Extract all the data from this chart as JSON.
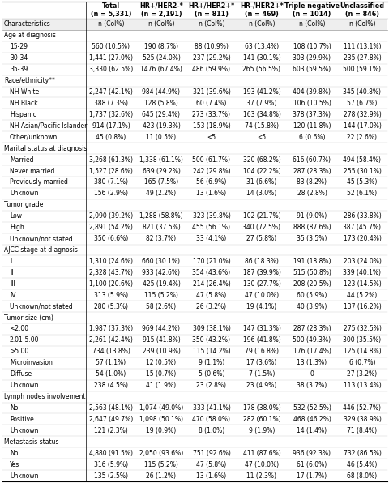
{
  "col_headers_line1": [
    "Total",
    "HR+/HER2-*",
    "HR+/HER2+*",
    "HR-/HER2+*",
    "Triple negative",
    "Unclassified"
  ],
  "col_headers_line2": [
    "(n = 5,331)",
    "(n = 2,191)",
    "(n = 811)",
    "(n = 469)",
    "(n = 1014)",
    "(n = 846)"
  ],
  "rows": [
    {
      "label": "Characteristics",
      "indent": 0,
      "section": false,
      "header": true,
      "values": [
        "n (Col%)",
        "n (Col%)",
        "n (Col%)",
        "n (Col%)",
        "n (Col%)",
        "n (Col%)"
      ]
    },
    {
      "label": "Age at diagnosis",
      "indent": 0,
      "section": true,
      "header": false,
      "values": []
    },
    {
      "label": "15-29",
      "indent": 1,
      "section": false,
      "header": false,
      "values": [
        "560 (10.5%)",
        "190 (8.7%)",
        "88 (10.9%)",
        "63 (13.4%)",
        "108 (10.7%)",
        "111 (13.1%)"
      ]
    },
    {
      "label": "30-34",
      "indent": 1,
      "section": false,
      "header": false,
      "values": [
        "1,441 (27.0%)",
        "525 (24.0%)",
        "237 (29.2%)",
        "141 (30.1%)",
        "303 (29.9%)",
        "235 (27.8%)"
      ]
    },
    {
      "label": "35-39",
      "indent": 1,
      "section": false,
      "header": false,
      "values": [
        "3,330 (62.5%)",
        "1476 (67.4%)",
        "486 (59.9%)",
        "265 (56.5%)",
        "603 (59.5%)",
        "500 (59.1%)"
      ]
    },
    {
      "label": "Race/ethnicity**",
      "indent": 0,
      "section": true,
      "header": false,
      "values": []
    },
    {
      "label": "NH White",
      "indent": 1,
      "section": false,
      "header": false,
      "values": [
        "2,247 (42.1%)",
        "984 (44.9%)",
        "321 (39.6%)",
        "193 (41.2%)",
        "404 (39.8%)",
        "345 (40.8%)"
      ]
    },
    {
      "label": "NH Black",
      "indent": 1,
      "section": false,
      "header": false,
      "values": [
        "388 (7.3%)",
        "128 (5.8%)",
        "60 (7.4%)",
        "37 (7.9%)",
        "106 (10.5%)",
        "57 (6.7%)"
      ]
    },
    {
      "label": "Hispanic",
      "indent": 1,
      "section": false,
      "header": false,
      "values": [
        "1,737 (32.6%)",
        "645 (29.4%)",
        "273 (33.7%)",
        "163 (34.8%)",
        "378 (37.3%)",
        "278 (32.9%)"
      ]
    },
    {
      "label": "NH Asian/Pacific Islander",
      "indent": 1,
      "section": false,
      "header": false,
      "values": [
        "914 (17.1%)",
        "423 (19.3%)",
        "153 (18.9%)",
        "74 (15.8%)",
        "120 (11.8%)",
        "144 (17.0%)"
      ]
    },
    {
      "label": "Other/unknown",
      "indent": 1,
      "section": false,
      "header": false,
      "values": [
        "45 (0.8%)",
        "11 (0.5%)",
        "<5",
        "<5",
        "6 (0.6%)",
        "22 (2.6%)"
      ]
    },
    {
      "label": "Marital status at diagnosis",
      "indent": 0,
      "section": true,
      "header": false,
      "values": []
    },
    {
      "label": "Married",
      "indent": 1,
      "section": false,
      "header": false,
      "values": [
        "3,268 (61.3%)",
        "1,338 (61.1%)",
        "500 (61.7%)",
        "320 (68.2%)",
        "616 (60.7%)",
        "494 (58.4%)"
      ]
    },
    {
      "label": "Never married",
      "indent": 1,
      "section": false,
      "header": false,
      "values": [
        "1,527 (28.6%)",
        "639 (29.2%)",
        "242 (29.8%)",
        "104 (22.2%)",
        "287 (28.3%)",
        "255 (30.1%)"
      ]
    },
    {
      "label": "Previously married",
      "indent": 1,
      "section": false,
      "header": false,
      "values": [
        "380 (7.1%)",
        "165 (7.5%)",
        "56 (6.9%)",
        "31 (6.6%)",
        "83 (8.2%)",
        "45 (5.3%)"
      ]
    },
    {
      "label": "Unknown",
      "indent": 1,
      "section": false,
      "header": false,
      "values": [
        "156 (2.9%)",
        "49 (2.2%)",
        "13 (1.6%)",
        "14 (3.0%)",
        "28 (2.8%)",
        "52 (6.1%)"
      ]
    },
    {
      "label": "Tumor grade†",
      "indent": 0,
      "section": true,
      "header": false,
      "values": []
    },
    {
      "label": "Low",
      "indent": 1,
      "section": false,
      "header": false,
      "values": [
        "2,090 (39.2%)",
        "1,288 (58.8%)",
        "323 (39.8%)",
        "102 (21.7%)",
        "91 (9.0%)",
        "286 (33.8%)"
      ]
    },
    {
      "label": "High",
      "indent": 1,
      "section": false,
      "header": false,
      "values": [
        "2,891 (54.2%)",
        "821 (37.5%)",
        "455 (56.1%)",
        "340 (72.5%)",
        "888 (87.6%)",
        "387 (45.7%)"
      ]
    },
    {
      "label": "Unknown/not stated",
      "indent": 1,
      "section": false,
      "header": false,
      "values": [
        "350 (6.6%)",
        "82 (3.7%)",
        "33 (4.1%)",
        "27 (5.8%)",
        "35 (3.5%)",
        "173 (20.4%)"
      ]
    },
    {
      "label": "AJCC stage at diagnosis",
      "indent": 0,
      "section": true,
      "header": false,
      "values": []
    },
    {
      "label": "I",
      "indent": 1,
      "section": false,
      "header": false,
      "values": [
        "1,310 (24.6%)",
        "660 (30.1%)",
        "170 (21.0%)",
        "86 (18.3%)",
        "191 (18.8%)",
        "203 (24.0%)"
      ]
    },
    {
      "label": "II",
      "indent": 1,
      "section": false,
      "header": false,
      "values": [
        "2,328 (43.7%)",
        "933 (42.6%)",
        "354 (43.6%)",
        "187 (39.9%)",
        "515 (50.8%)",
        "339 (40.1%)"
      ]
    },
    {
      "label": "III",
      "indent": 1,
      "section": false,
      "header": false,
      "values": [
        "1,100 (20.6%)",
        "425 (19.4%)",
        "214 (26.4%)",
        "130 (27.7%)",
        "208 (20.5%)",
        "123 (14.5%)"
      ]
    },
    {
      "label": "IV",
      "indent": 1,
      "section": false,
      "header": false,
      "values": [
        "313 (5.9%)",
        "115 (5.2%)",
        "47 (5.8%)",
        "47 (10.0%)",
        "60 (5.9%)",
        "44 (5.2%)"
      ]
    },
    {
      "label": "Unknown/not stated",
      "indent": 1,
      "section": false,
      "header": false,
      "values": [
        "280 (5.3%)",
        "58 (2.6%)",
        "26 (3.2%)",
        "19 (4.1%)",
        "40 (3.9%)",
        "137 (16.2%)"
      ]
    },
    {
      "label": "Tumor size (cm)",
      "indent": 0,
      "section": true,
      "header": false,
      "values": []
    },
    {
      "label": "<2.00",
      "indent": 1,
      "section": false,
      "header": false,
      "values": [
        "1,987 (37.3%)",
        "969 (44.2%)",
        "309 (38.1%)",
        "147 (31.3%)",
        "287 (28.3%)",
        "275 (32.5%)"
      ]
    },
    {
      "label": "2.01-5.00",
      "indent": 1,
      "section": false,
      "header": false,
      "values": [
        "2,261 (42.4%)",
        "915 (41.8%)",
        "350 (43.2%)",
        "196 (41.8%)",
        "500 (49.3%)",
        "300 (35.5%)"
      ]
    },
    {
      "label": ">5.00",
      "indent": 1,
      "section": false,
      "header": false,
      "values": [
        "734 (13.8%)",
        "239 (10.9%)",
        "115 (14.2%)",
        "79 (16.8%)",
        "176 (17.4%)",
        "125 (14.8%)"
      ]
    },
    {
      "label": "Microinvasion",
      "indent": 1,
      "section": false,
      "header": false,
      "values": [
        "57 (1.1%)",
        "12 (0.5%)",
        "9 (1.1%)",
        "17 (3.6%)",
        "13 (1.3%)",
        "6 (0.7%)"
      ]
    },
    {
      "label": "Diffuse",
      "indent": 1,
      "section": false,
      "header": false,
      "values": [
        "54 (1.0%)",
        "15 (0.7%)",
        "5 (0.6%)",
        "7 (1.5%)",
        "0",
        "27 (3.2%)"
      ]
    },
    {
      "label": "Unknown",
      "indent": 1,
      "section": false,
      "header": false,
      "values": [
        "238 (4.5%)",
        "41 (1.9%)",
        "23 (2.8%)",
        "23 (4.9%)",
        "38 (3.7%)",
        "113 (13.4%)"
      ]
    },
    {
      "label": "Lymph nodes involvement",
      "indent": 0,
      "section": true,
      "header": false,
      "values": []
    },
    {
      "label": "No",
      "indent": 1,
      "section": false,
      "header": false,
      "values": [
        "2,563 (48.1%)",
        "1,074 (49.0%)",
        "333 (41.1%)",
        "178 (38.0%)",
        "532 (52.5%)",
        "446 (52.7%)"
      ]
    },
    {
      "label": "Positive",
      "indent": 1,
      "section": false,
      "header": false,
      "values": [
        "2,647 (49.7%)",
        "1,098 (50.1%)",
        "470 (58.0%)",
        "282 (60.1%)",
        "468 (46.2%)",
        "329 (38.9%)"
      ]
    },
    {
      "label": "Unknown",
      "indent": 1,
      "section": false,
      "header": false,
      "values": [
        "121 (2.3%)",
        "19 (0.9%)",
        "8 (1.0%)",
        "9 (1.9%)",
        "14 (1.4%)",
        "71 (8.4%)"
      ]
    },
    {
      "label": "Metastasis status",
      "indent": 0,
      "section": true,
      "header": false,
      "values": []
    },
    {
      "label": "No",
      "indent": 1,
      "section": false,
      "header": false,
      "values": [
        "4,880 (91.5%)",
        "2,050 (93.6%)",
        "751 (92.6%)",
        "411 (87.6%)",
        "936 (92.3%)",
        "732 (86.5%)"
      ]
    },
    {
      "label": "Yes",
      "indent": 1,
      "section": false,
      "header": false,
      "values": [
        "316 (5.9%)",
        "115 (5.2%)",
        "47 (5.8%)",
        "47 (10.0%)",
        "61 (6.0%)",
        "46 (5.4%)"
      ]
    },
    {
      "label": "Unknown",
      "indent": 1,
      "section": false,
      "header": false,
      "values": [
        "135 (2.5%)",
        "26 (1.2%)",
        "13 (1.6%)",
        "11 (2.3%)",
        "17 (1.7%)",
        "68 (8.0%)"
      ]
    }
  ],
  "bg_color": "#ffffff",
  "font_size_header": 5.8,
  "font_size_data": 5.5,
  "font_size_section": 5.5
}
